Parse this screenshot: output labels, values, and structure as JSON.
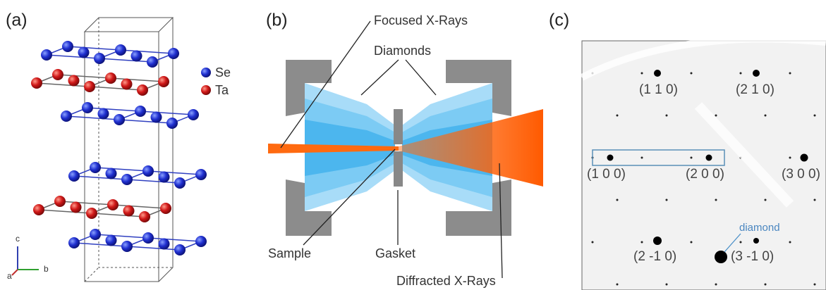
{
  "panel_a": {
    "label": "(a)",
    "legend": [
      "Se",
      "Ta"
    ],
    "axes": [
      "c",
      "a",
      "b"
    ]
  },
  "panel_b": {
    "label": "(b)",
    "annotations": [
      "Focused X-Rays",
      "Diamonds",
      "Sample",
      "Gasket",
      "Diffracted X-Rays"
    ]
  },
  "panel_c": {
    "label": "(c)",
    "reflections": [
      "(1 1 0)",
      "(2 1 0)",
      "(1 0 0)",
      "(2 0 0)",
      "(3 0 0)",
      "(2 -1 0)",
      "(3 -1 0)"
    ],
    "annotation": "diamond"
  }
}
